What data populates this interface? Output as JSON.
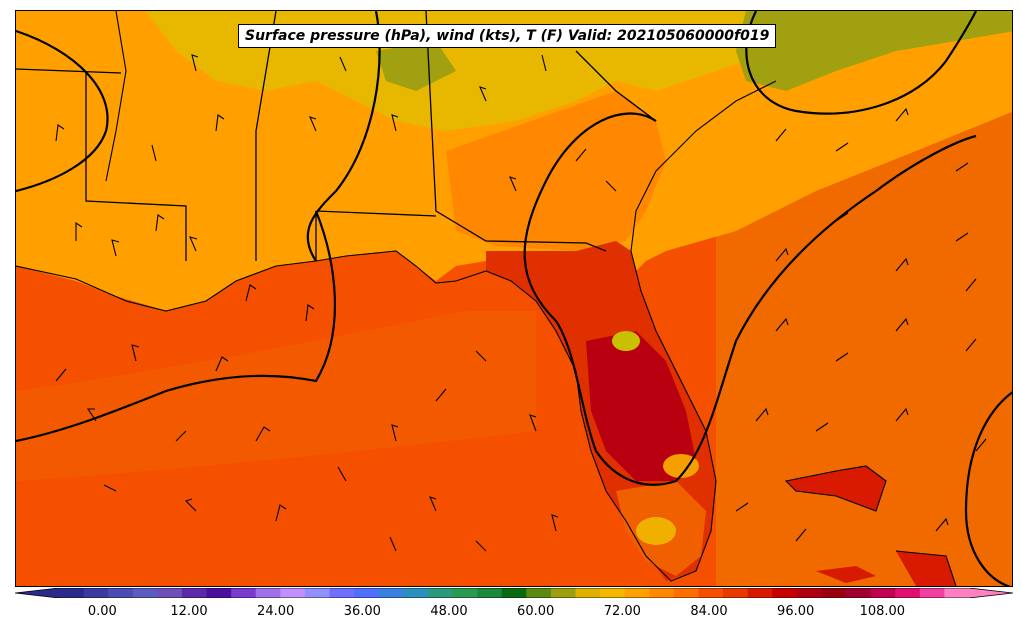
{
  "title": "Surface pressure (hPa), wind (kts), T (F) Valid: 202105060000f019",
  "colorbar": {
    "min": -6,
    "max": 120,
    "step": 3,
    "tick_labels": [
      "0.00",
      "12.00",
      "24.00",
      "36.00",
      "48.00",
      "60.00",
      "72.00",
      "84.00",
      "96.00",
      "108.00"
    ],
    "tick_values": [
      0,
      12,
      24,
      36,
      48,
      60,
      72,
      84,
      96,
      108
    ],
    "colors": [
      "#2a2a8a",
      "#3a3aa0",
      "#4b4bb4",
      "#5c5cc0",
      "#6d4fb8",
      "#5a2aa8",
      "#4a10a0",
      "#7a3ad0",
      "#a070e8",
      "#c090ff",
      "#9090ff",
      "#6f6fff",
      "#4f6fff",
      "#3a80e0",
      "#2a90c0",
      "#2a9a7a",
      "#2a9a50",
      "#1a8a3a",
      "#0a6a10",
      "#5a8a10",
      "#9aa010",
      "#e0b000",
      "#f5b800",
      "#ffa000",
      "#ff8800",
      "#ff6f00",
      "#f55000",
      "#e83a00",
      "#d81a00",
      "#c80000",
      "#b00010",
      "#980010",
      "#a00030",
      "#c00050",
      "#e01070",
      "#f040a0",
      "#ff80c0"
    ]
  },
  "map_colors": {
    "ocean_gulf": "#f55000",
    "ocean_atlantic": "#f07000",
    "land_warm": "#ffa000",
    "land_cool": "#e8b800",
    "land_olive": "#a0a010",
    "florida_hot": "#e03000",
    "florida_core": "#b80010",
    "coast_red": "#d81a00"
  }
}
